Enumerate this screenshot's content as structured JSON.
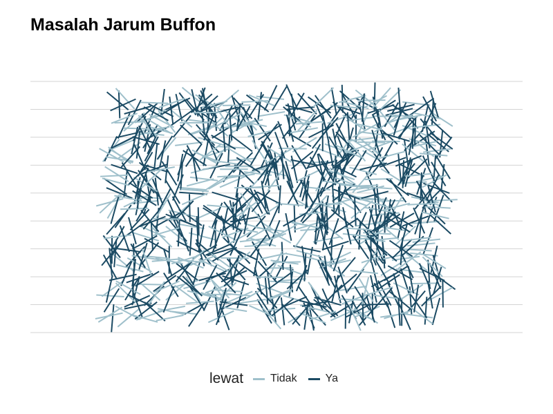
{
  "chart_data": {
    "type": "line",
    "title": "Masalah Jarum Buffon",
    "legend": {
      "title": "lewat",
      "placement": "bottom",
      "entries": [
        {
          "name": "Tidak",
          "color": "#9fc0cb"
        },
        {
          "name": "Ya",
          "color": "#1b4a63"
        }
      ]
    },
    "grid": {
      "horizontal": true,
      "vertical": false,
      "line_positions": [
        0,
        1,
        2,
        3,
        4,
        5,
        6,
        7,
        8,
        9
      ]
    },
    "axes": {
      "x_ticks_visible": false,
      "y_ticks_visible": false
    },
    "needle_length": 1,
    "needles": {
      "count": 1000,
      "x_range": [
        0,
        13
      ],
      "y_range": [
        0,
        9
      ],
      "note_sample": "random throws; lines crossing a grid line are 'Ya'"
    }
  }
}
